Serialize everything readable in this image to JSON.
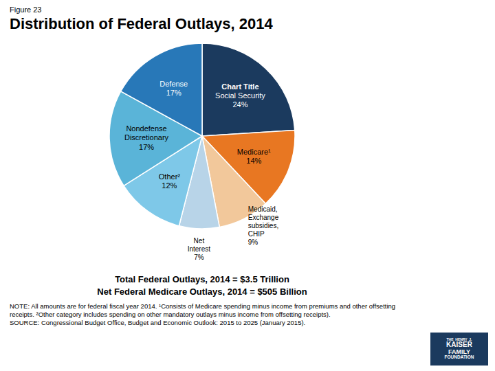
{
  "chart_data": {
    "type": "pie",
    "title": "Distribution of Federal Outlays, 2014",
    "categories": [
      "Social Security",
      "Medicare¹",
      "Medicaid,\nExchange\nsubsidies,\nCHIP",
      "Net\nInterest",
      "Other²",
      "Nondefense\nDiscretionary",
      "Defense"
    ],
    "values": [
      24,
      14,
      9,
      7,
      12,
      17,
      17
    ],
    "value_labels": [
      "24%",
      "14%",
      "9%",
      "7%",
      "12%",
      "17%",
      "17%"
    ],
    "data_labels": true,
    "colors": [
      "#1b3a5e",
      "#e87722",
      "#f2c89b",
      "#b8d4e8",
      "#7ec8e8",
      "#5ab4d8",
      "#2878b8"
    ],
    "annotations": [
      "Figure 23",
      "Chart Title",
      "Total Federal Outlays, 2014 = $3.5 Trillion",
      "Net Federal Medicare Outlays, 2014 = $505 Billion",
      "NOTE: All amounts are for federal fiscal year 2014.  ¹Consists of Medicare spending minus income from premiums and other offsetting receipts.  ²Other category includes spending on other mandatory outlays minus income from offsetting receipts).\nSOURCE: Congressional Budget Office, Budget and Economic Outlook: 2015 to 2025 (January 2015).",
      "THE  HENRY  J.",
      "KAISER",
      "FAMILY",
      "FOUNDATION"
    ]
  }
}
